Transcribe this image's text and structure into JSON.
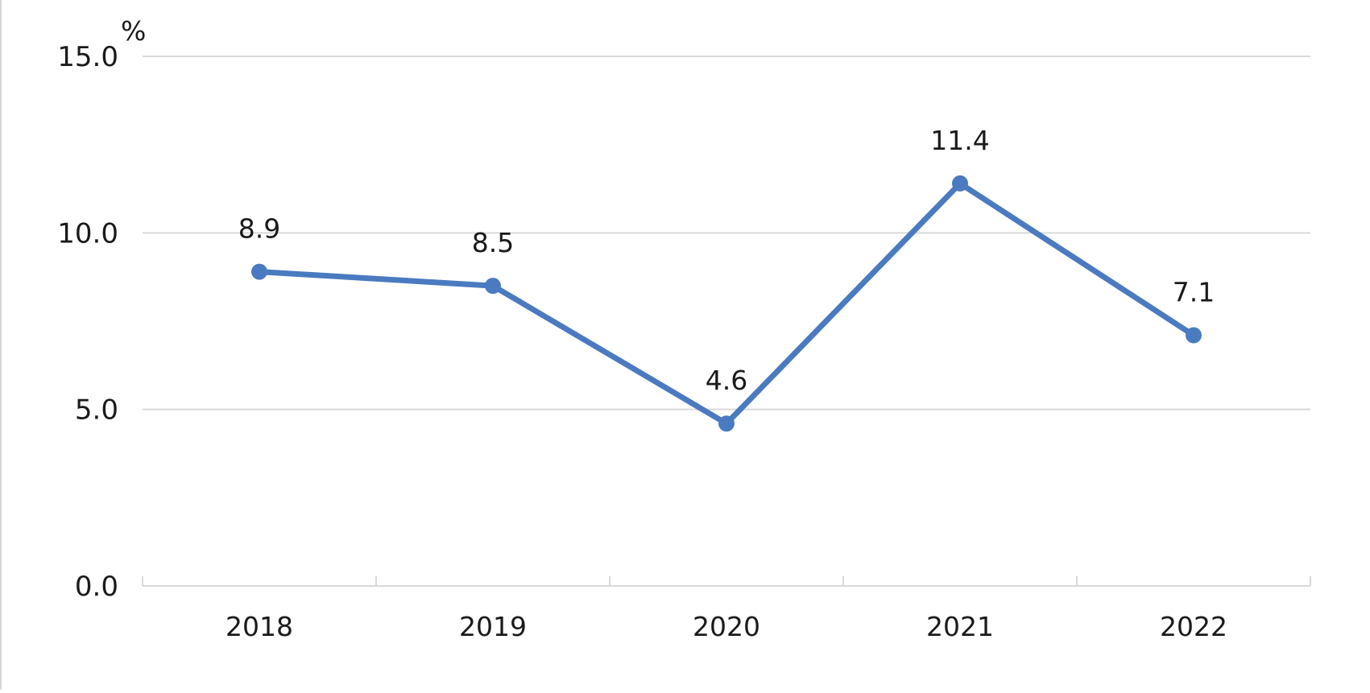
{
  "chart_data": {
    "type": "line",
    "unit_label": "%",
    "categories": [
      "2018",
      "2019",
      "2020",
      "2021",
      "2022"
    ],
    "series": [
      {
        "values": [
          8.9,
          8.5,
          4.6,
          11.4,
          7.1
        ],
        "data_labels": [
          "8.9",
          "8.5",
          "4.6",
          "11.4",
          "7.1"
        ],
        "color": "#4a7ac0"
      }
    ],
    "ylim": [
      0,
      15
    ],
    "yticks": [
      0,
      5,
      10,
      15
    ],
    "ytick_labels": [
      "0.0",
      "5.0",
      "10.0",
      "15.0"
    ],
    "grid": true,
    "legend": "none"
  }
}
